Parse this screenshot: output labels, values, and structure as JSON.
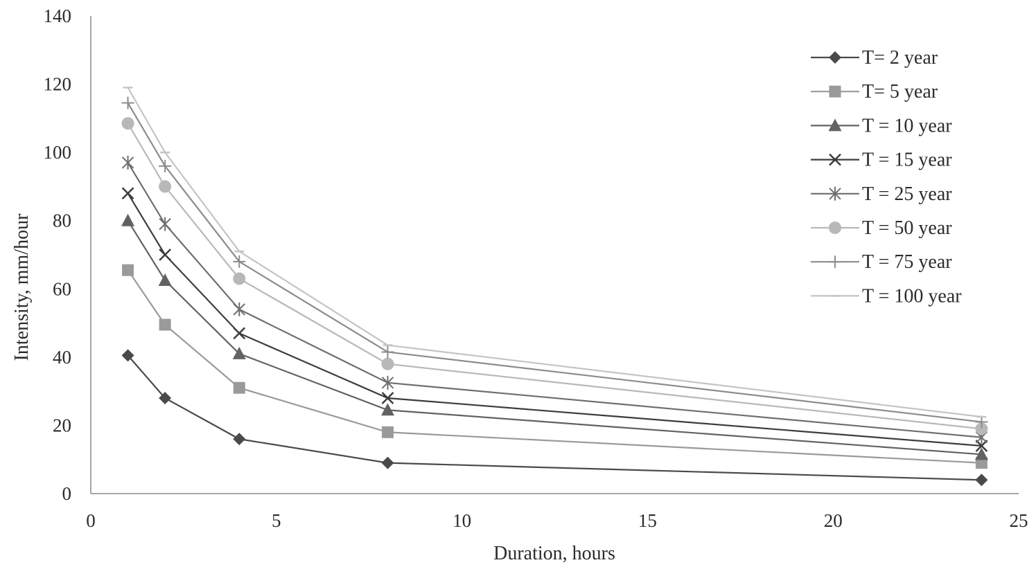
{
  "chart_data": {
    "type": "line",
    "title": "",
    "xlabel": "Duration, hours",
    "ylabel": "Intensity, mm/hour",
    "xlim": [
      0,
      25
    ],
    "ylim": [
      0,
      140
    ],
    "x_ticks": [
      0,
      5,
      10,
      15,
      20,
      25
    ],
    "y_ticks": [
      0,
      20,
      40,
      60,
      80,
      100,
      120,
      140
    ],
    "grid": false,
    "legend_position": "top-right",
    "x": [
      1,
      2,
      4,
      8,
      24
    ],
    "series": [
      {
        "name": "T= 2 year",
        "marker": "diamond",
        "color": "#4a4a4a",
        "values": [
          40.5,
          28,
          16,
          9,
          4
        ]
      },
      {
        "name": "T= 5 year",
        "marker": "square",
        "color": "#9a9a9a",
        "values": [
          65.5,
          49.5,
          31,
          18,
          9
        ]
      },
      {
        "name": "T = 10 year",
        "marker": "triangle",
        "color": "#626262",
        "values": [
          80,
          62.5,
          41,
          24.5,
          11.5
        ]
      },
      {
        "name": "T = 15 year",
        "marker": "x",
        "color": "#3c3c3c",
        "values": [
          88,
          70,
          47,
          28,
          14
        ]
      },
      {
        "name": "T = 25 year",
        "marker": "asterisk",
        "color": "#6e6e6e",
        "values": [
          97,
          79,
          54,
          32.5,
          16.5
        ]
      },
      {
        "name": "T = 50 year",
        "marker": "circle",
        "color": "#b8b8b8",
        "values": [
          108.5,
          90,
          63,
          38,
          19
        ]
      },
      {
        "name": "T = 75 year",
        "marker": "plus",
        "color": "#8c8c8c",
        "values": [
          114.5,
          96,
          68,
          41.5,
          21
        ]
      },
      {
        "name": "T = 100 year",
        "marker": "dash",
        "color": "#c4c4c4",
        "values": [
          119,
          100,
          71,
          43.5,
          22.5
        ]
      }
    ]
  }
}
